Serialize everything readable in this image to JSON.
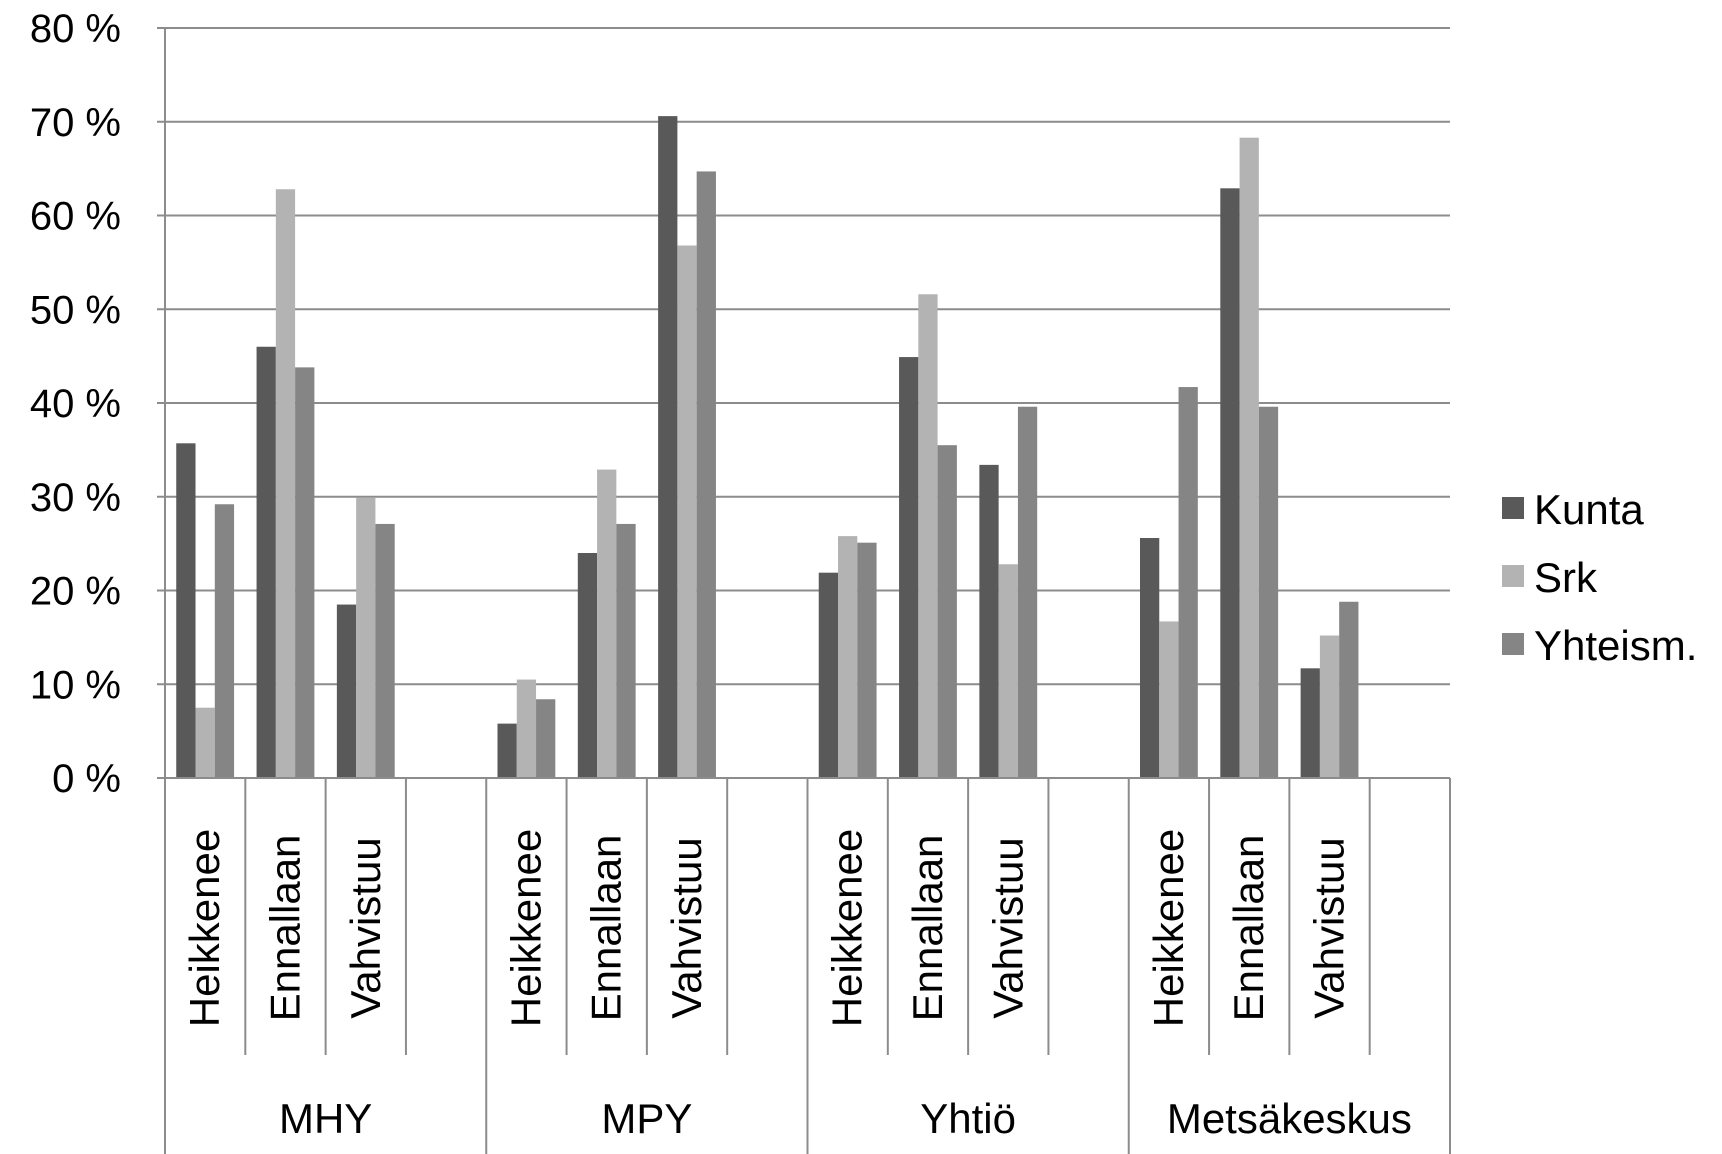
{
  "chart_data": {
    "type": "bar",
    "title": "",
    "xlabel": "",
    "ylabel": "",
    "ylim": [
      0,
      80
    ],
    "yticks": [
      0,
      10,
      20,
      30,
      40,
      50,
      60,
      70,
      80
    ],
    "ytick_suffix": " %",
    "grid": true,
    "legend_position": "right",
    "groups": [
      {
        "label": "MHY",
        "categories": [
          "Heikkenee",
          "Ennallaan",
          "Vahvistuu"
        ]
      },
      {
        "label": "MPY",
        "categories": [
          "Heikkenee",
          "Ennallaan",
          "Vahvistuu"
        ]
      },
      {
        "label": "Yhtiö",
        "categories": [
          "Heikkenee",
          "Ennallaan",
          "Vahvistuu"
        ]
      },
      {
        "label": "Metsäkeskus",
        "categories": [
          "Heikkenee",
          "Ennallaan",
          "Vahvistuu"
        ]
      }
    ],
    "series": [
      {
        "name": "Kunta",
        "color": "#595959",
        "values": [
          35.7,
          46.0,
          18.5,
          5.8,
          24.0,
          70.6,
          21.9,
          44.9,
          33.4,
          25.6,
          62.9,
          11.7
        ]
      },
      {
        "name": "Srk",
        "color": "#b3b3b3",
        "values": [
          7.5,
          62.8,
          29.9,
          10.5,
          32.9,
          56.8,
          25.8,
          51.6,
          22.8,
          16.7,
          68.3,
          15.2
        ]
      },
      {
        "name": "Yhteism.",
        "color": "#858585",
        "values": [
          29.2,
          43.8,
          27.1,
          8.4,
          27.1,
          64.7,
          25.1,
          35.5,
          39.6,
          41.7,
          39.6,
          18.8
        ]
      }
    ]
  }
}
